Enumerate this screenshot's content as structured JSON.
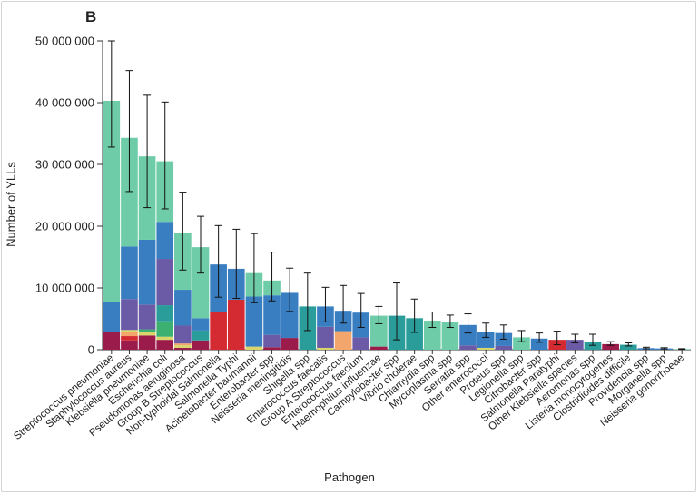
{
  "panel_label": "B",
  "chart_data": {
    "type": "bar",
    "stacked": true,
    "xlabel": "Pathogen",
    "ylabel": "Number of YLLs",
    "ylim": [
      0,
      50000000
    ],
    "yticks": [
      0,
      10000000,
      20000000,
      30000000,
      40000000,
      50000000
    ],
    "ytick_labels": [
      "0",
      "10 000 000",
      "20 000 000",
      "30 000 000",
      "40 000 000",
      "50 000 000"
    ],
    "grid": false,
    "legend": "none",
    "segment_colors": {
      "red": "#d42a32",
      "maroon": "#9b1b4b",
      "orange": "#f2a66b",
      "yellow": "#d8d66a",
      "green": "#3bb070",
      "teal": "#2a9d9a",
      "purple": "#6b5aa6",
      "blue": "#3a7ec2",
      "mint": "#6ecca8",
      "grey": "#9a9a9a"
    },
    "bars": [
      {
        "label": "Streptococcus pneumoniae",
        "total": 40300000,
        "err": [
          32800000,
          50000000
        ],
        "segments": [
          [
            "maroon",
            2800000
          ],
          [
            "blue",
            4900000
          ],
          [
            "mint",
            32600000
          ]
        ]
      },
      {
        "label": "Staphylococcus aureus",
        "total": 34300000,
        "err": [
          25600000,
          45200000
        ],
        "segments": [
          [
            "maroon",
            1500000
          ],
          [
            "red",
            700000
          ],
          [
            "orange",
            700000
          ],
          [
            "yellow",
            300000
          ],
          [
            "purple",
            5000000
          ],
          [
            "blue",
            8500000
          ],
          [
            "mint",
            17600000
          ]
        ]
      },
      {
        "label": "Klebsiella pneumoniae",
        "total": 31300000,
        "err": [
          23000000,
          41200000
        ],
        "segments": [
          [
            "maroon",
            2300000
          ],
          [
            "yellow",
            500000
          ],
          [
            "green",
            500000
          ],
          [
            "purple",
            4000000
          ],
          [
            "blue",
            10500000
          ],
          [
            "mint",
            13500000
          ]
        ]
      },
      {
        "label": "Escherichia coli",
        "total": 30500000,
        "err": [
          22800000,
          40100000
        ],
        "segments": [
          [
            "maroon",
            1600000
          ],
          [
            "yellow",
            500000
          ],
          [
            "green",
            2500000
          ],
          [
            "teal",
            2600000
          ],
          [
            "purple",
            7500000
          ],
          [
            "blue",
            6000000
          ],
          [
            "mint",
            9800000
          ]
        ]
      },
      {
        "label": "Pseudomonas aeruginosa",
        "total": 18900000,
        "err": [
          12900000,
          25500000
        ],
        "segments": [
          [
            "maroon",
            300000
          ],
          [
            "yellow",
            400000
          ],
          [
            "orange",
            300000
          ],
          [
            "purple",
            2900000
          ],
          [
            "blue",
            5800000
          ],
          [
            "mint",
            9200000
          ]
        ]
      },
      {
        "label": "Group B Streptococcus",
        "total": 16600000,
        "err": [
          12400000,
          21600000
        ],
        "segments": [
          [
            "maroon",
            1500000
          ],
          [
            "teal",
            1600000
          ],
          [
            "blue",
            2000000
          ],
          [
            "mint",
            11500000
          ]
        ]
      },
      {
        "label": "Non-typhoidal Salmonella",
        "total": 13800000,
        "err": [
          8500000,
          20100000
        ],
        "segments": [
          [
            "red",
            6100000
          ],
          [
            "blue",
            7700000
          ]
        ]
      },
      {
        "label": "Salmonella Typhi",
        "total": 13100000,
        "err": [
          8300000,
          19500000
        ],
        "segments": [
          [
            "red",
            8100000
          ],
          [
            "blue",
            5000000
          ]
        ]
      },
      {
        "label": "Acinetobacter baumannii",
        "total": 12400000,
        "err": [
          7600000,
          18800000
        ],
        "segments": [
          [
            "yellow",
            500000
          ],
          [
            "blue",
            8100000
          ],
          [
            "mint",
            3800000
          ]
        ]
      },
      {
        "label": "Enterobacter spp",
        "total": 11200000,
        "err": [
          7900000,
          15800000
        ],
        "segments": [
          [
            "maroon",
            400000
          ],
          [
            "purple",
            2000000
          ],
          [
            "blue",
            6400000
          ],
          [
            "mint",
            2400000
          ]
        ]
      },
      {
        "label": "Neisseria meningitidis",
        "total": 9200000,
        "err": [
          6200000,
          13200000
        ],
        "segments": [
          [
            "maroon",
            1900000
          ],
          [
            "blue",
            7300000
          ]
        ]
      },
      {
        "label": "Shigella spp",
        "total": 7000000,
        "err": [
          3100000,
          12400000
        ],
        "segments": [
          [
            "teal",
            7000000
          ]
        ]
      },
      {
        "label": "Enterococcus faecalis",
        "total": 7000000,
        "err": [
          4500000,
          10100000
        ],
        "segments": [
          [
            "yellow",
            300000
          ],
          [
            "purple",
            3400000
          ],
          [
            "blue",
            3300000
          ]
        ]
      },
      {
        "label": "Group A Streptococcus",
        "total": 6300000,
        "err": [
          4300000,
          10400000
        ],
        "segments": [
          [
            "orange",
            3000000
          ],
          [
            "blue",
            3300000
          ]
        ]
      },
      {
        "label": "Enterococcus faecium",
        "total": 6000000,
        "err": [
          3600000,
          9100000
        ],
        "segments": [
          [
            "purple",
            2000000
          ],
          [
            "blue",
            4000000
          ]
        ]
      },
      {
        "label": "Haemophilus influenzae",
        "total": 5500000,
        "err": [
          4200000,
          7000000
        ],
        "segments": [
          [
            "maroon",
            500000
          ],
          [
            "mint",
            5000000
          ]
        ]
      },
      {
        "label": "Campylobacter spp",
        "total": 5500000,
        "err": [
          1600000,
          10800000
        ],
        "segments": [
          [
            "teal",
            5500000
          ]
        ]
      },
      {
        "label": "Vibrio cholerae",
        "total": 5100000,
        "err": [
          2800000,
          8200000
        ],
        "segments": [
          [
            "teal",
            5100000
          ]
        ]
      },
      {
        "label": "Chlamydia spp",
        "total": 4700000,
        "err": [
          3600000,
          6100000
        ],
        "segments": [
          [
            "mint",
            4700000
          ]
        ]
      },
      {
        "label": "Mycoplasma spp",
        "total": 4500000,
        "err": [
          3600000,
          5600000
        ],
        "segments": [
          [
            "mint",
            4500000
          ]
        ]
      },
      {
        "label": "Serratia spp",
        "total": 4000000,
        "err": [
          2700000,
          5800000
        ],
        "segments": [
          [
            "purple",
            700000
          ],
          [
            "blue",
            3300000
          ]
        ]
      },
      {
        "label": "Other enterococci",
        "total": 2900000,
        "err": [
          2000000,
          4300000
        ],
        "segments": [
          [
            "yellow",
            300000
          ],
          [
            "blue",
            2600000
          ]
        ]
      },
      {
        "label": "Proteus spp",
        "total": 2700000,
        "err": [
          1700000,
          4000000
        ],
        "segments": [
          [
            "purple",
            600000
          ],
          [
            "blue",
            2100000
          ]
        ]
      },
      {
        "label": "Legionella spp",
        "total": 2000000,
        "err": [
          1300000,
          3100000
        ],
        "segments": [
          [
            "mint",
            2000000
          ]
        ]
      },
      {
        "label": "Citrobacter spp",
        "total": 1800000,
        "err": [
          1200000,
          2700000
        ],
        "segments": [
          [
            "blue",
            1800000
          ]
        ]
      },
      {
        "label": "Salmonella Paratyphi",
        "total": 1600000,
        "err": [
          800000,
          3000000
        ],
        "segments": [
          [
            "red",
            1600000
          ]
        ]
      },
      {
        "label": "Other Klebsiella species",
        "total": 1600000,
        "err": [
          1100000,
          2500000
        ],
        "segments": [
          [
            "purple",
            1600000
          ]
        ]
      },
      {
        "label": "Aeromonas spp",
        "total": 1300000,
        "err": [
          700000,
          2500000
        ],
        "segments": [
          [
            "teal",
            1300000
          ]
        ]
      },
      {
        "label": "Listeria monocytogenes",
        "total": 900000,
        "err": [
          700000,
          1300000
        ],
        "segments": [
          [
            "maroon",
            900000
          ]
        ]
      },
      {
        "label": "Clostridioides difficile",
        "total": 800000,
        "err": [
          600000,
          1100000
        ],
        "segments": [
          [
            "teal",
            800000
          ]
        ]
      },
      {
        "label": "Providencia spp",
        "total": 250000,
        "err": [
          150000,
          400000
        ],
        "segments": [
          [
            "blue",
            250000
          ]
        ]
      },
      {
        "label": "Morganella spp",
        "total": 200000,
        "err": [
          120000,
          320000
        ],
        "segments": [
          [
            "blue",
            200000
          ]
        ]
      },
      {
        "label": "Neisseria gonorrhoeae",
        "total": 100000,
        "err": [
          50000,
          160000
        ],
        "segments": [
          [
            "mint",
            100000
          ]
        ]
      }
    ]
  }
}
